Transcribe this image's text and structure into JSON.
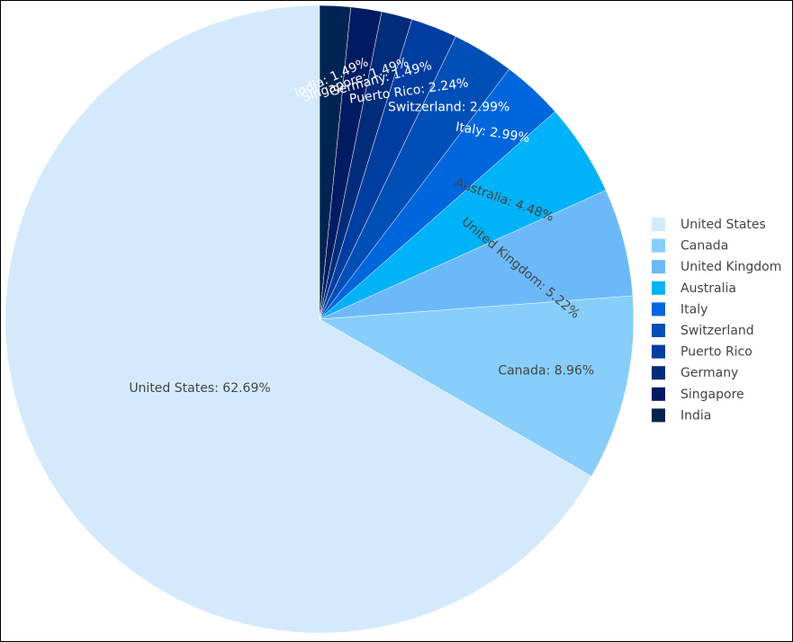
{
  "chart_data": {
    "type": "pie",
    "title": "",
    "legend_position": "right",
    "direction": "counterclockwise",
    "start": "top",
    "slices": [
      {
        "label": "United States",
        "value": 62.69,
        "text": "United States: 62.69%",
        "color": "#d4eafc",
        "text_color": "#444444"
      },
      {
        "label": "Canada",
        "value": 8.96,
        "text": "Canada: 8.96%",
        "color": "#87cefa",
        "text_color": "#444444"
      },
      {
        "label": "United Kingdom",
        "value": 5.22,
        "text": "United Kingdom: 5.22%",
        "color": "#6cb9fa",
        "text_color": "#444444"
      },
      {
        "label": "Australia",
        "value": 4.48,
        "text": "Australia: 4.48%",
        "color": "#00b2f7",
        "text_color": "#444444"
      },
      {
        "label": "Italy",
        "value": 2.99,
        "text": "Italy: 2.99%",
        "color": "#0066dd",
        "text_color": "#ffffff"
      },
      {
        "label": "Switzerland",
        "value": 2.99,
        "text": "Switzerland: 2.99%",
        "color": "#004fb6",
        "text_color": "#ffffff"
      },
      {
        "label": "Puerto Rico",
        "value": 2.24,
        "text": "Puerto Rico: 2.24%",
        "color": "#003da1",
        "text_color": "#ffffff"
      },
      {
        "label": "Germany",
        "value": 1.49,
        "text": "Germany: 1.49%",
        "color": "#012c7a",
        "text_color": "#ffffff"
      },
      {
        "label": "Singapore",
        "value": 1.49,
        "text": "Singapore: 1.49%",
        "color": "#001b62",
        "text_color": "#ffffff"
      },
      {
        "label": "India",
        "value": 1.49,
        "text": "India: 1.49%",
        "color": "#002452",
        "text_color": "#ffffff"
      }
    ]
  }
}
